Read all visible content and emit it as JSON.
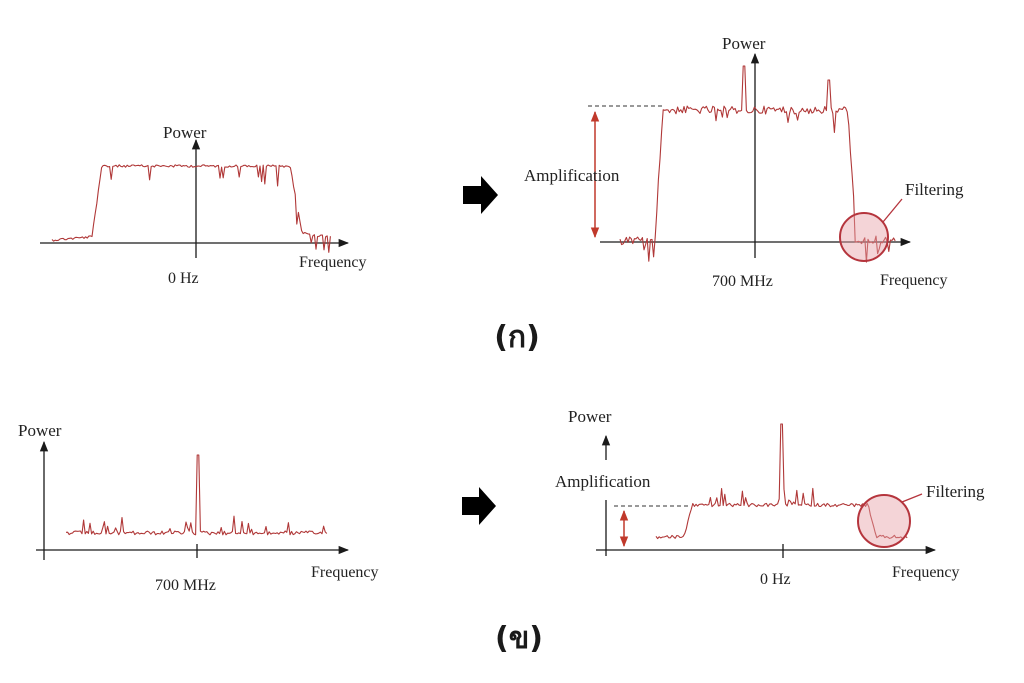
{
  "colors": {
    "signal": "#b03838",
    "axis": "#1a1a1a",
    "amplify_arrow": "#c0392b",
    "filter_circle": "#b5353d",
    "filter_fill": "#e6a0a6",
    "transition_arrow": "#000000"
  },
  "panels": {
    "a": {
      "caption": "(ก)",
      "input_plot": {
        "y_label": "Power",
        "x_label": "Frequency",
        "center_label": "0 Hz"
      },
      "output_plot": {
        "y_label": "Power",
        "x_label": "Frequency",
        "center_label": "700 MHz",
        "amplification_label": "Amplification",
        "filtering_label": "Filtering"
      }
    },
    "b": {
      "caption": "(ข)",
      "input_plot": {
        "y_label": "Power",
        "x_label": "Frequency",
        "center_label": "700 MHz"
      },
      "output_plot": {
        "y_label": "Power",
        "x_label": "Frequency",
        "center_label": "0 Hz",
        "amplification_label": "Amplification",
        "filtering_label": "Filtering"
      }
    }
  }
}
